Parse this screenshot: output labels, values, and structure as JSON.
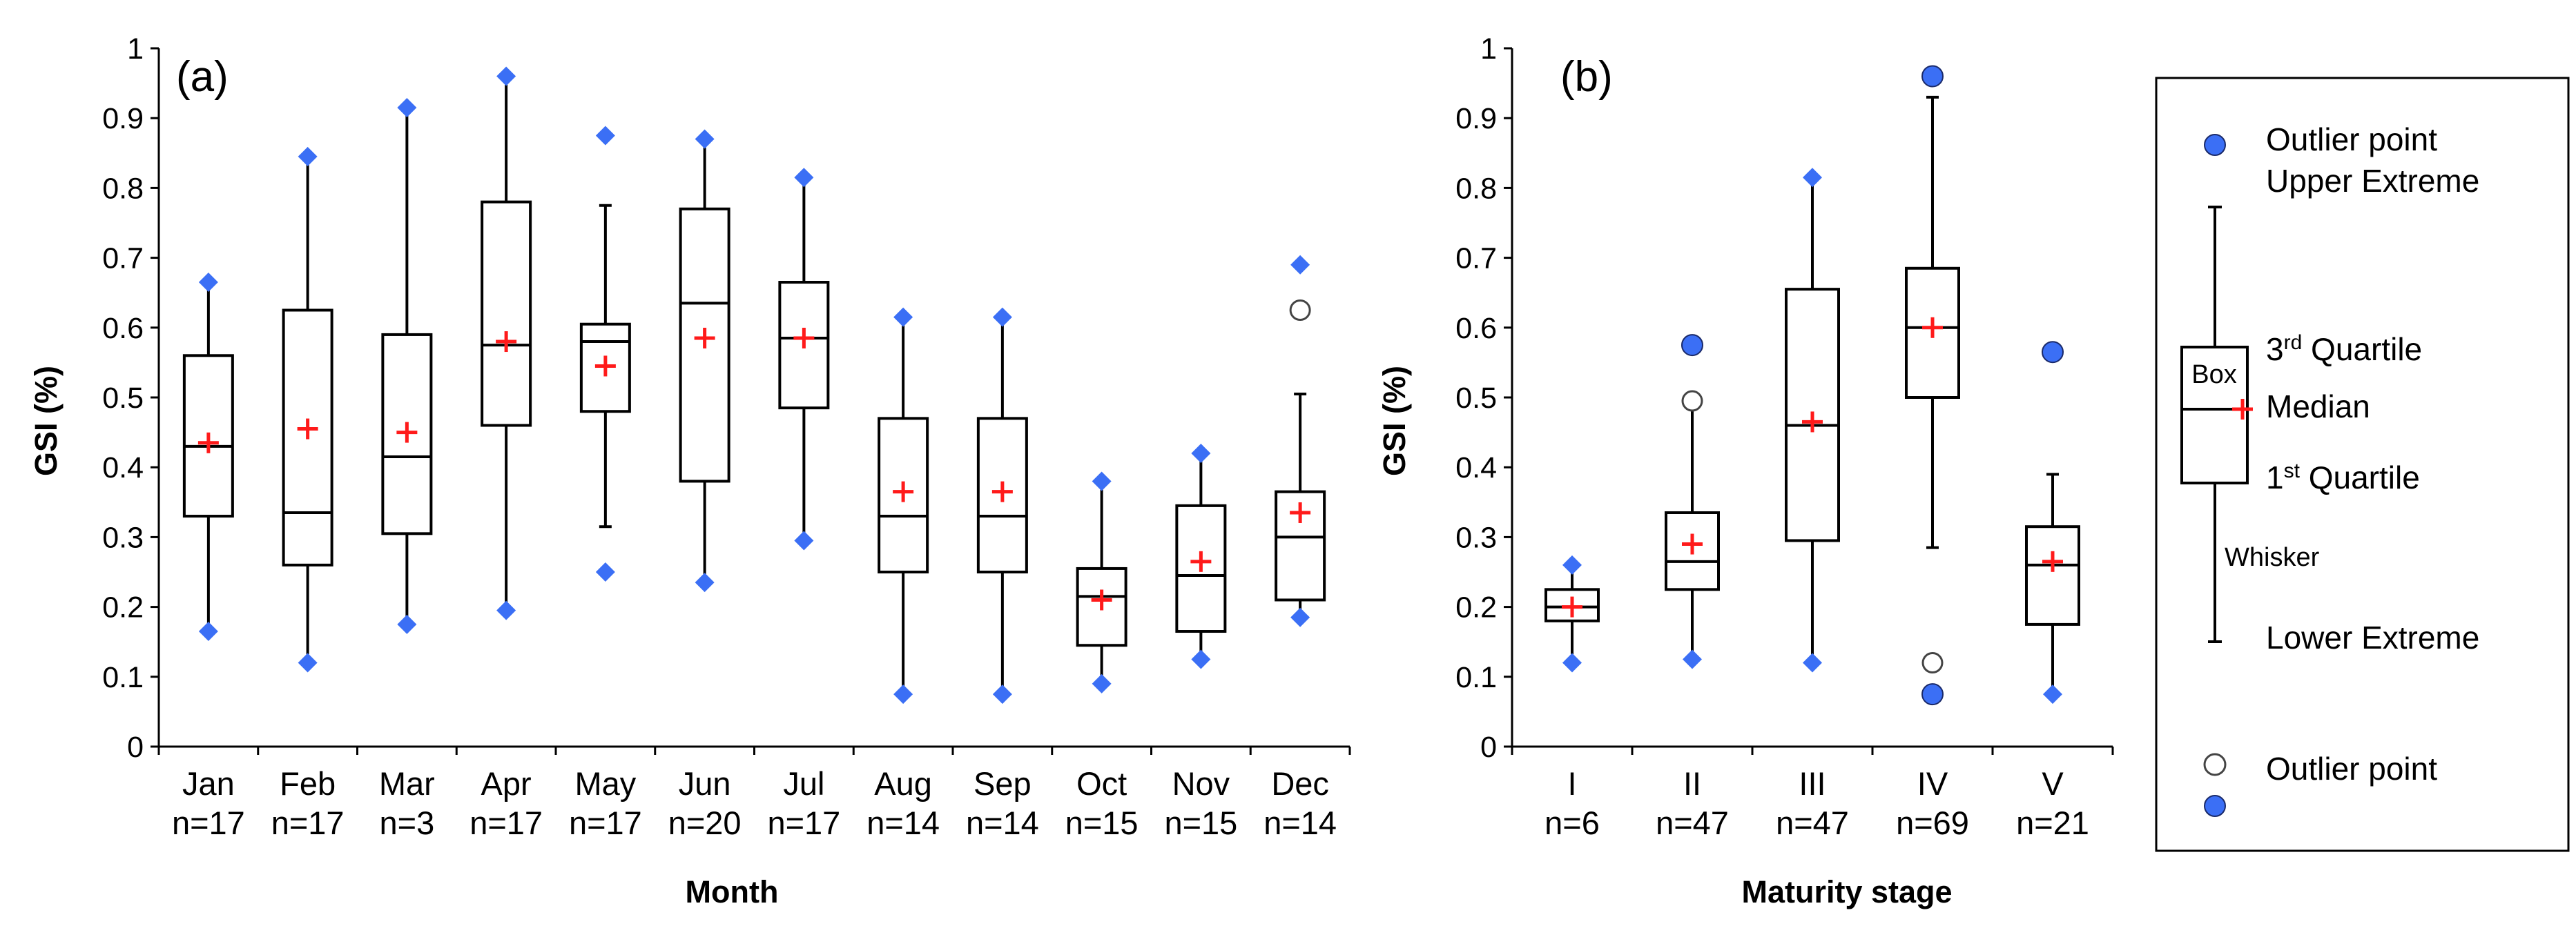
{
  "chart_data": [
    {
      "type": "box",
      "panel_label": "(a)",
      "xlabel": "Month",
      "ylabel": "GSI (%)",
      "ylim": [
        0,
        1
      ],
      "yticks": [
        "0",
        "0.1",
        "0.2",
        "0.3",
        "0.4",
        "0.5",
        "0.6",
        "0.7",
        "0.8",
        "0.9",
        "1"
      ],
      "groups": [
        {
          "label": "Jan",
          "n": "n=17",
          "min": 0.165,
          "q1": 0.33,
          "median": 0.43,
          "q3": 0.56,
          "max": 0.665,
          "mean": 0.435,
          "outliers_open": []
        },
        {
          "label": "Feb",
          "n": "n=17",
          "min": 0.12,
          "q1": 0.26,
          "median": 0.335,
          "q3": 0.625,
          "max": 0.845,
          "mean": 0.455,
          "outliers_open": []
        },
        {
          "label": "Mar",
          "n": "n=3",
          "min": 0.175,
          "q1": 0.305,
          "median": 0.415,
          "q3": 0.59,
          "max": 0.915,
          "mean": 0.45,
          "outliers_open": []
        },
        {
          "label": "Apr",
          "n": "n=17",
          "min": 0.195,
          "q1": 0.46,
          "median": 0.575,
          "q3": 0.78,
          "max": 0.96,
          "mean": 0.58,
          "outliers_open": []
        },
        {
          "label": "May",
          "n": "n=17",
          "min": 0.25,
          "q1": 0.48,
          "median": 0.58,
          "q3": 0.605,
          "max": 0.875,
          "mean": 0.545,
          "whisker_low": 0.315,
          "whisker_high": 0.775,
          "outliers_open": []
        },
        {
          "label": "Jun",
          "n": "n=20",
          "min": 0.235,
          "q1": 0.38,
          "median": 0.635,
          "q3": 0.77,
          "max": 0.87,
          "mean": 0.585,
          "outliers_open": []
        },
        {
          "label": "Jul",
          "n": "n=17",
          "min": 0.295,
          "q1": 0.485,
          "median": 0.585,
          "q3": 0.665,
          "max": 0.815,
          "mean": 0.585,
          "outliers_open": []
        },
        {
          "label": "Aug",
          "n": "n=14",
          "min": 0.075,
          "q1": 0.25,
          "median": 0.33,
          "q3": 0.47,
          "max": 0.615,
          "mean": 0.365,
          "outliers_open": []
        },
        {
          "label": "Sep",
          "n": "n=14",
          "min": 0.075,
          "q1": 0.25,
          "median": 0.33,
          "q3": 0.47,
          "max": 0.615,
          "mean": 0.365,
          "outliers_open": []
        },
        {
          "label": "Oct",
          "n": "n=15",
          "min": 0.09,
          "q1": 0.145,
          "median": 0.215,
          "q3": 0.255,
          "max": 0.38,
          "mean": 0.21,
          "outliers_open": []
        },
        {
          "label": "Nov",
          "n": "n=15",
          "min": 0.125,
          "q1": 0.165,
          "median": 0.245,
          "q3": 0.345,
          "max": 0.42,
          "mean": 0.265,
          "outliers_open": []
        },
        {
          "label": "Dec",
          "n": "n=14",
          "min": 0.185,
          "q1": 0.21,
          "median": 0.3,
          "q3": 0.365,
          "max": 0.69,
          "mean": 0.335,
          "whisker_high": 0.505,
          "outliers_open": [
            0.625
          ]
        }
      ]
    },
    {
      "type": "box",
      "panel_label": "(b)",
      "xlabel": "Maturity stage",
      "ylabel": "GSI (%)",
      "ylim": [
        0,
        1
      ],
      "yticks": [
        "0",
        "0.1",
        "0.2",
        "0.3",
        "0.4",
        "0.5",
        "0.6",
        "0.7",
        "0.8",
        "0.9",
        "1"
      ],
      "groups": [
        {
          "label": "I",
          "n": "n=6",
          "min": 0.12,
          "q1": 0.18,
          "median": 0.2,
          "q3": 0.225,
          "max": 0.26,
          "mean": 0.2,
          "min_marker": "diamond",
          "max_marker": "diamond",
          "outliers_open": []
        },
        {
          "label": "II",
          "n": "n=47",
          "min": 0.125,
          "q1": 0.225,
          "median": 0.265,
          "q3": 0.335,
          "max": 0.575,
          "mean": 0.29,
          "whisker_high": 0.485,
          "min_marker": "diamond",
          "max_marker": "circle",
          "outliers_open": [
            0.495
          ]
        },
        {
          "label": "III",
          "n": "n=47",
          "min": 0.12,
          "q1": 0.295,
          "median": 0.46,
          "q3": 0.655,
          "max": 0.815,
          "mean": 0.465,
          "min_marker": "diamond",
          "max_marker": "diamond",
          "outliers_open": []
        },
        {
          "label": "IV",
          "n": "n=69",
          "min": 0.075,
          "q1": 0.5,
          "median": 0.6,
          "q3": 0.685,
          "max": 0.96,
          "mean": 0.6,
          "whisker_low": 0.285,
          "whisker_high": 0.93,
          "min_marker": "circle",
          "max_marker": "circle",
          "outliers_open": [
            0.12
          ]
        },
        {
          "label": "V",
          "n": "n=21",
          "min": 0.075,
          "q1": 0.175,
          "median": 0.26,
          "q3": 0.315,
          "max": 0.565,
          "mean": 0.265,
          "whisker_high": 0.39,
          "min_marker": "diamond",
          "max_marker": "circle",
          "outliers_open": []
        }
      ]
    }
  ],
  "legend": {
    "outlier_upper": "Outlier point",
    "upper_extreme": "Upper Extreme",
    "box": "Box",
    "third_quartile": "3rd Quartile",
    "median": "Median",
    "first_quartile": "1st Quartile",
    "whisker": "Whisker",
    "lower_extreme": "Lower Extreme",
    "outlier_lower": "Outlier point"
  },
  "colors": {
    "extreme_marker": "#3b6ff5",
    "mean_marker": "#ff1a1a",
    "box_stroke": "#000000",
    "open_outlier": "#ffffff"
  }
}
